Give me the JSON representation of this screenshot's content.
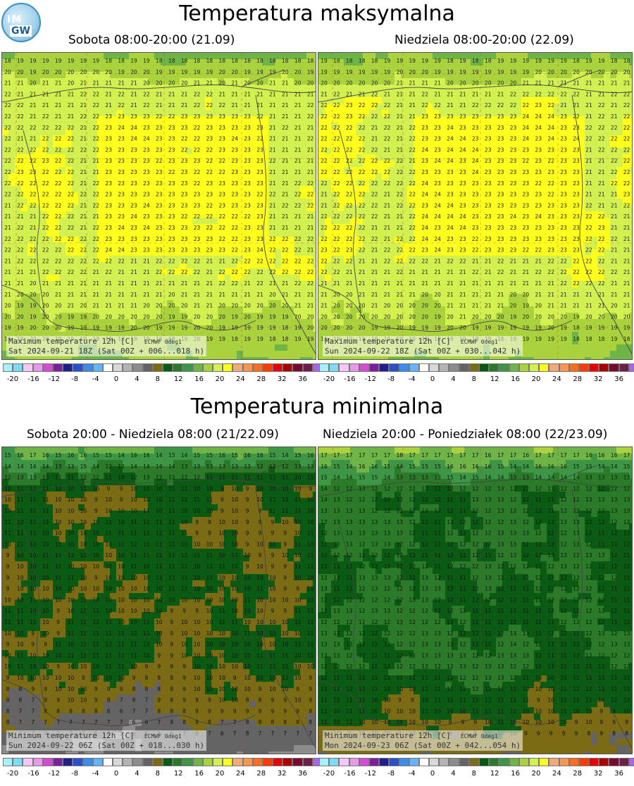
{
  "header": {
    "max_title": "Temperatura maksymalna",
    "min_title": "Temperatura minimalna"
  },
  "logo": {
    "text_top": "IM",
    "text_bottom": "GW",
    "icon": "imgw-logo"
  },
  "panels": [
    {
      "id": "max-sat",
      "subtitle": "Sobota 08:00-20:00 (21.09)",
      "caption_line1": "Maximum temperature 12h [C]",
      "caption_src": "ECMWF 0deg1",
      "caption_line2": "Sat 2024-09-21 18Z (Sat 00Z + 006...018 h)",
      "field_type": "max",
      "base": 21
    },
    {
      "id": "max-sun",
      "subtitle": "Niedziela 08:00-20:00 (22.09)",
      "caption_line1": "Maximum temperature 12h [C]",
      "caption_src": "ECMWF 0deg1",
      "caption_line2": "Sun 2024-09-22 18Z (Sat 00Z + 030...042 h)",
      "field_type": "max",
      "base": 21
    },
    {
      "id": "min-sat-sun",
      "subtitle": "Sobota 20:00 - Niedziela 08:00 (21/22.09)",
      "caption_line1": "Minimum temperature 12h [C]",
      "caption_src": "ECMWF 0deg1",
      "caption_line2": "Sun 2024-09-22 06Z (Sat 00Z + 018...030 h)",
      "field_type": "min",
      "base": 9
    },
    {
      "id": "min-sun-mon",
      "subtitle": "Niedziela 20:00 - Poniedziałek 08:00 (22/23.09)",
      "caption_line1": "Minimum temperature 12h [C]",
      "caption_src": "ECMWF 0deg1",
      "caption_line2": "Mon 2024-09-23 06Z (Sat 00Z + 042...054 h)",
      "field_type": "min",
      "base": 11
    }
  ],
  "legend": {
    "colors": [
      "#a4f0fc",
      "#7ddcf5",
      "#f4c8f4",
      "#e79ae8",
      "#d44cd4",
      "#7a1f9e",
      "#1f1f8c",
      "#2850c8",
      "#3c8cf0",
      "#64b4fa",
      "#ffffff",
      "#d8d8d8",
      "#b4b4b4",
      "#8c8c8c",
      "#646464",
      "#7a6b14",
      "#0a5a14",
      "#2a7a2a",
      "#3c9646",
      "#6eb446",
      "#aad23c",
      "#d2f050",
      "#ffff1e",
      "#f0aa78",
      "#ff9650",
      "#ff6e1e",
      "#ff3c00",
      "#e60000",
      "#aa0000",
      "#780a32",
      "#6e1e46",
      "#aa64e6"
    ],
    "tick_labels": [
      "-20",
      "-16",
      "-12",
      "-8",
      "-4",
      "0",
      "4",
      "8",
      "12",
      "16",
      "20",
      "24",
      "28",
      "32",
      "36"
    ]
  }
}
